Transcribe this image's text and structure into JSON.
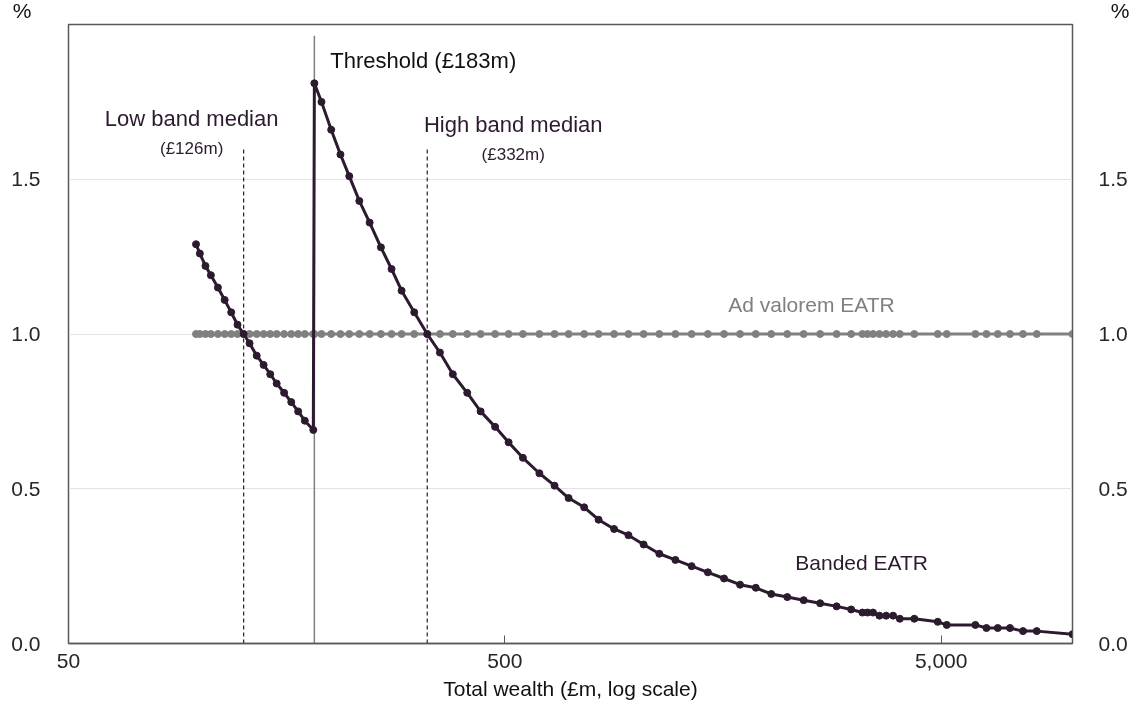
{
  "chart_data": {
    "type": "line",
    "xlabel": "Total wealth (£m, log scale)",
    "ylabel": "%",
    "y2label": "%",
    "log": "x",
    "xlim": [
      50,
      10000
    ],
    "xticks": [
      50,
      500,
      {
        "value": 5000,
        "label": "5,000"
      }
    ],
    "ylim": [
      0,
      2
    ],
    "yticks": [
      {
        "value": 0,
        "label": "0.0"
      },
      0.5,
      {
        "value": 1,
        "label": "1.0"
      },
      1.5
    ],
    "y2lim": [
      0,
      2
    ],
    "y2ticks": [
      {
        "value": 0,
        "label": "0.0"
      },
      0.5,
      {
        "value": 1,
        "label": "1.0"
      },
      1.5
    ],
    "grid": "y",
    "marker": "circle",
    "line_style": "solid",
    "x": [
      98,
      100,
      103,
      106,
      110,
      114,
      118,
      122,
      126,
      130,
      135,
      140,
      145,
      150,
      156,
      162,
      168,
      174,
      182,
      183,
      190,
      200,
      210,
      220,
      232,
      245,
      260,
      275,
      290,
      310,
      332,
      355,
      380,
      410,
      440,
      475,
      510,
      550,
      600,
      650,
      700,
      760,
      820,
      890,
      960,
      1040,
      1130,
      1230,
      1340,
      1460,
      1590,
      1730,
      1880,
      2040,
      2220,
      2420,
      2640,
      2880,
      3110,
      3300,
      3390,
      3490,
      3610,
      3740,
      3880,
      4020,
      4340,
      4910,
      5150,
      5990,
      6350,
      6740,
      7190,
      7700,
      8280,
      10000
    ],
    "series": [
      {
        "name": "Ad valorem EATR",
        "color": "#808080",
        "values": [
          1,
          1,
          1,
          1,
          1,
          1,
          1,
          1,
          1,
          1,
          1,
          1,
          1,
          1,
          1,
          1,
          1,
          1,
          1,
          1,
          1,
          1,
          1,
          1,
          1,
          1,
          1,
          1,
          1,
          1,
          1,
          1,
          1,
          1,
          1,
          1,
          1,
          1,
          1,
          1,
          1,
          1,
          1,
          1,
          1,
          1,
          1,
          1,
          1,
          1,
          1,
          1,
          1,
          1,
          1,
          1,
          1,
          1,
          1,
          1,
          1,
          1,
          1,
          1,
          1,
          1,
          1,
          1,
          1,
          1,
          1,
          1,
          1,
          1,
          1,
          1
        ]
      },
      {
        "name": "Banded EATR",
        "color": "#2c1a2f",
        "values": [
          1.29,
          1.26,
          1.22,
          1.19,
          1.15,
          1.11,
          1.07,
          1.03,
          1.0,
          0.97,
          0.93,
          0.9,
          0.87,
          0.84,
          0.81,
          0.78,
          0.75,
          0.72,
          0.69,
          1.81,
          1.75,
          1.66,
          1.58,
          1.51,
          1.43,
          1.36,
          1.28,
          1.21,
          1.14,
          1.07,
          1.0,
          0.94,
          0.87,
          0.81,
          0.75,
          0.7,
          0.65,
          0.6,
          0.55,
          0.51,
          0.47,
          0.44,
          0.4,
          0.37,
          0.35,
          0.32,
          0.29,
          0.27,
          0.25,
          0.23,
          0.21,
          0.19,
          0.18,
          0.16,
          0.15,
          0.14,
          0.13,
          0.12,
          0.11,
          0.1,
          0.1,
          0.1,
          0.09,
          0.09,
          0.09,
          0.08,
          0.08,
          0.07,
          0.06,
          0.06,
          0.05,
          0.05,
          0.05,
          0.04,
          0.04,
          0.03
        ]
      }
    ],
    "ref_lines": [
      {
        "axis": "x",
        "value": 126,
        "label": "Low band median\n(£126m)",
        "color": "#2c1a2f",
        "line_style": "dashed"
      },
      {
        "axis": "x",
        "value": 183,
        "label": "Threshold (£183m)",
        "color": "#7f7f7f",
        "line_style": "solid"
      },
      {
        "axis": "x",
        "value": 332,
        "label": "High band median\n(£332m)",
        "color": "#2c1a2f",
        "line_style": "dashed"
      }
    ]
  }
}
